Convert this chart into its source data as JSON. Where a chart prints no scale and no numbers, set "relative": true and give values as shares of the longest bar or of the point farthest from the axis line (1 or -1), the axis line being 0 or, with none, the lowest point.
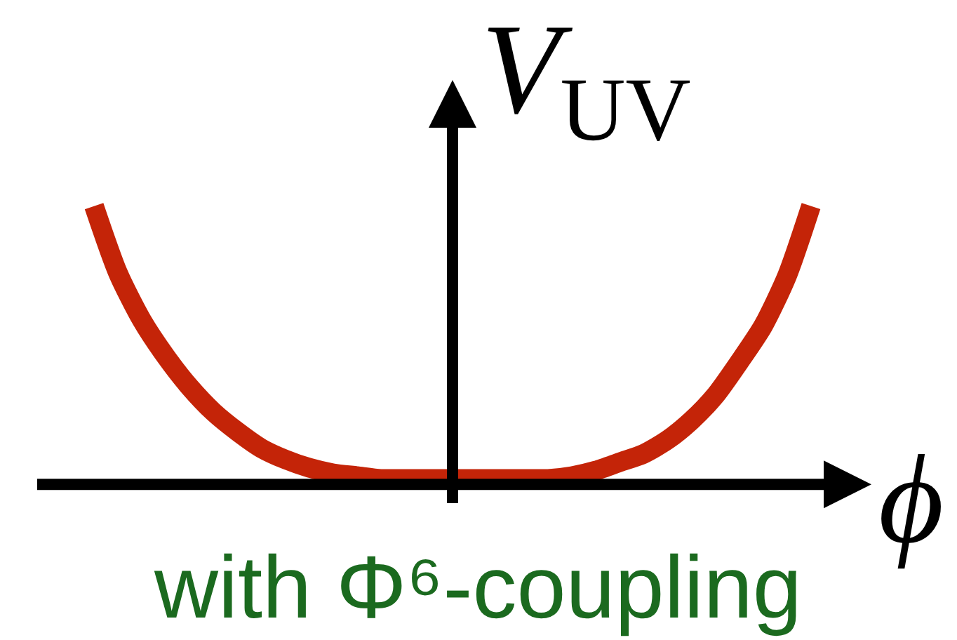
{
  "chart_data": {
    "type": "line",
    "relative": true,
    "categories": [
      null,
      null,
      null,
      null,
      null,
      null,
      null,
      null,
      null,
      null,
      null,
      null,
      null,
      null,
      null,
      null,
      null,
      null,
      null,
      null,
      null,
      null,
      null,
      null,
      null,
      null,
      null,
      null,
      null,
      null,
      null
    ],
    "values": [
      1.0,
      0.76,
      0.59,
      0.46,
      0.35,
      0.26,
      0.19,
      0.13,
      0.09,
      0.06,
      0.04,
      0.03,
      0.02,
      0.02,
      0.02,
      0.02,
      0.02,
      0.02,
      0.02,
      0.02,
      0.03,
      0.05,
      0.08,
      0.11,
      0.16,
      0.23,
      0.32,
      0.44,
      0.57,
      0.75,
      1.0
    ],
    "color": "#c42408",
    "xlabel": "ϕ",
    "ylabel": "V$_{UV}$",
    "annotations": [
      "with Φ⁶-coupling"
    ]
  }
}
